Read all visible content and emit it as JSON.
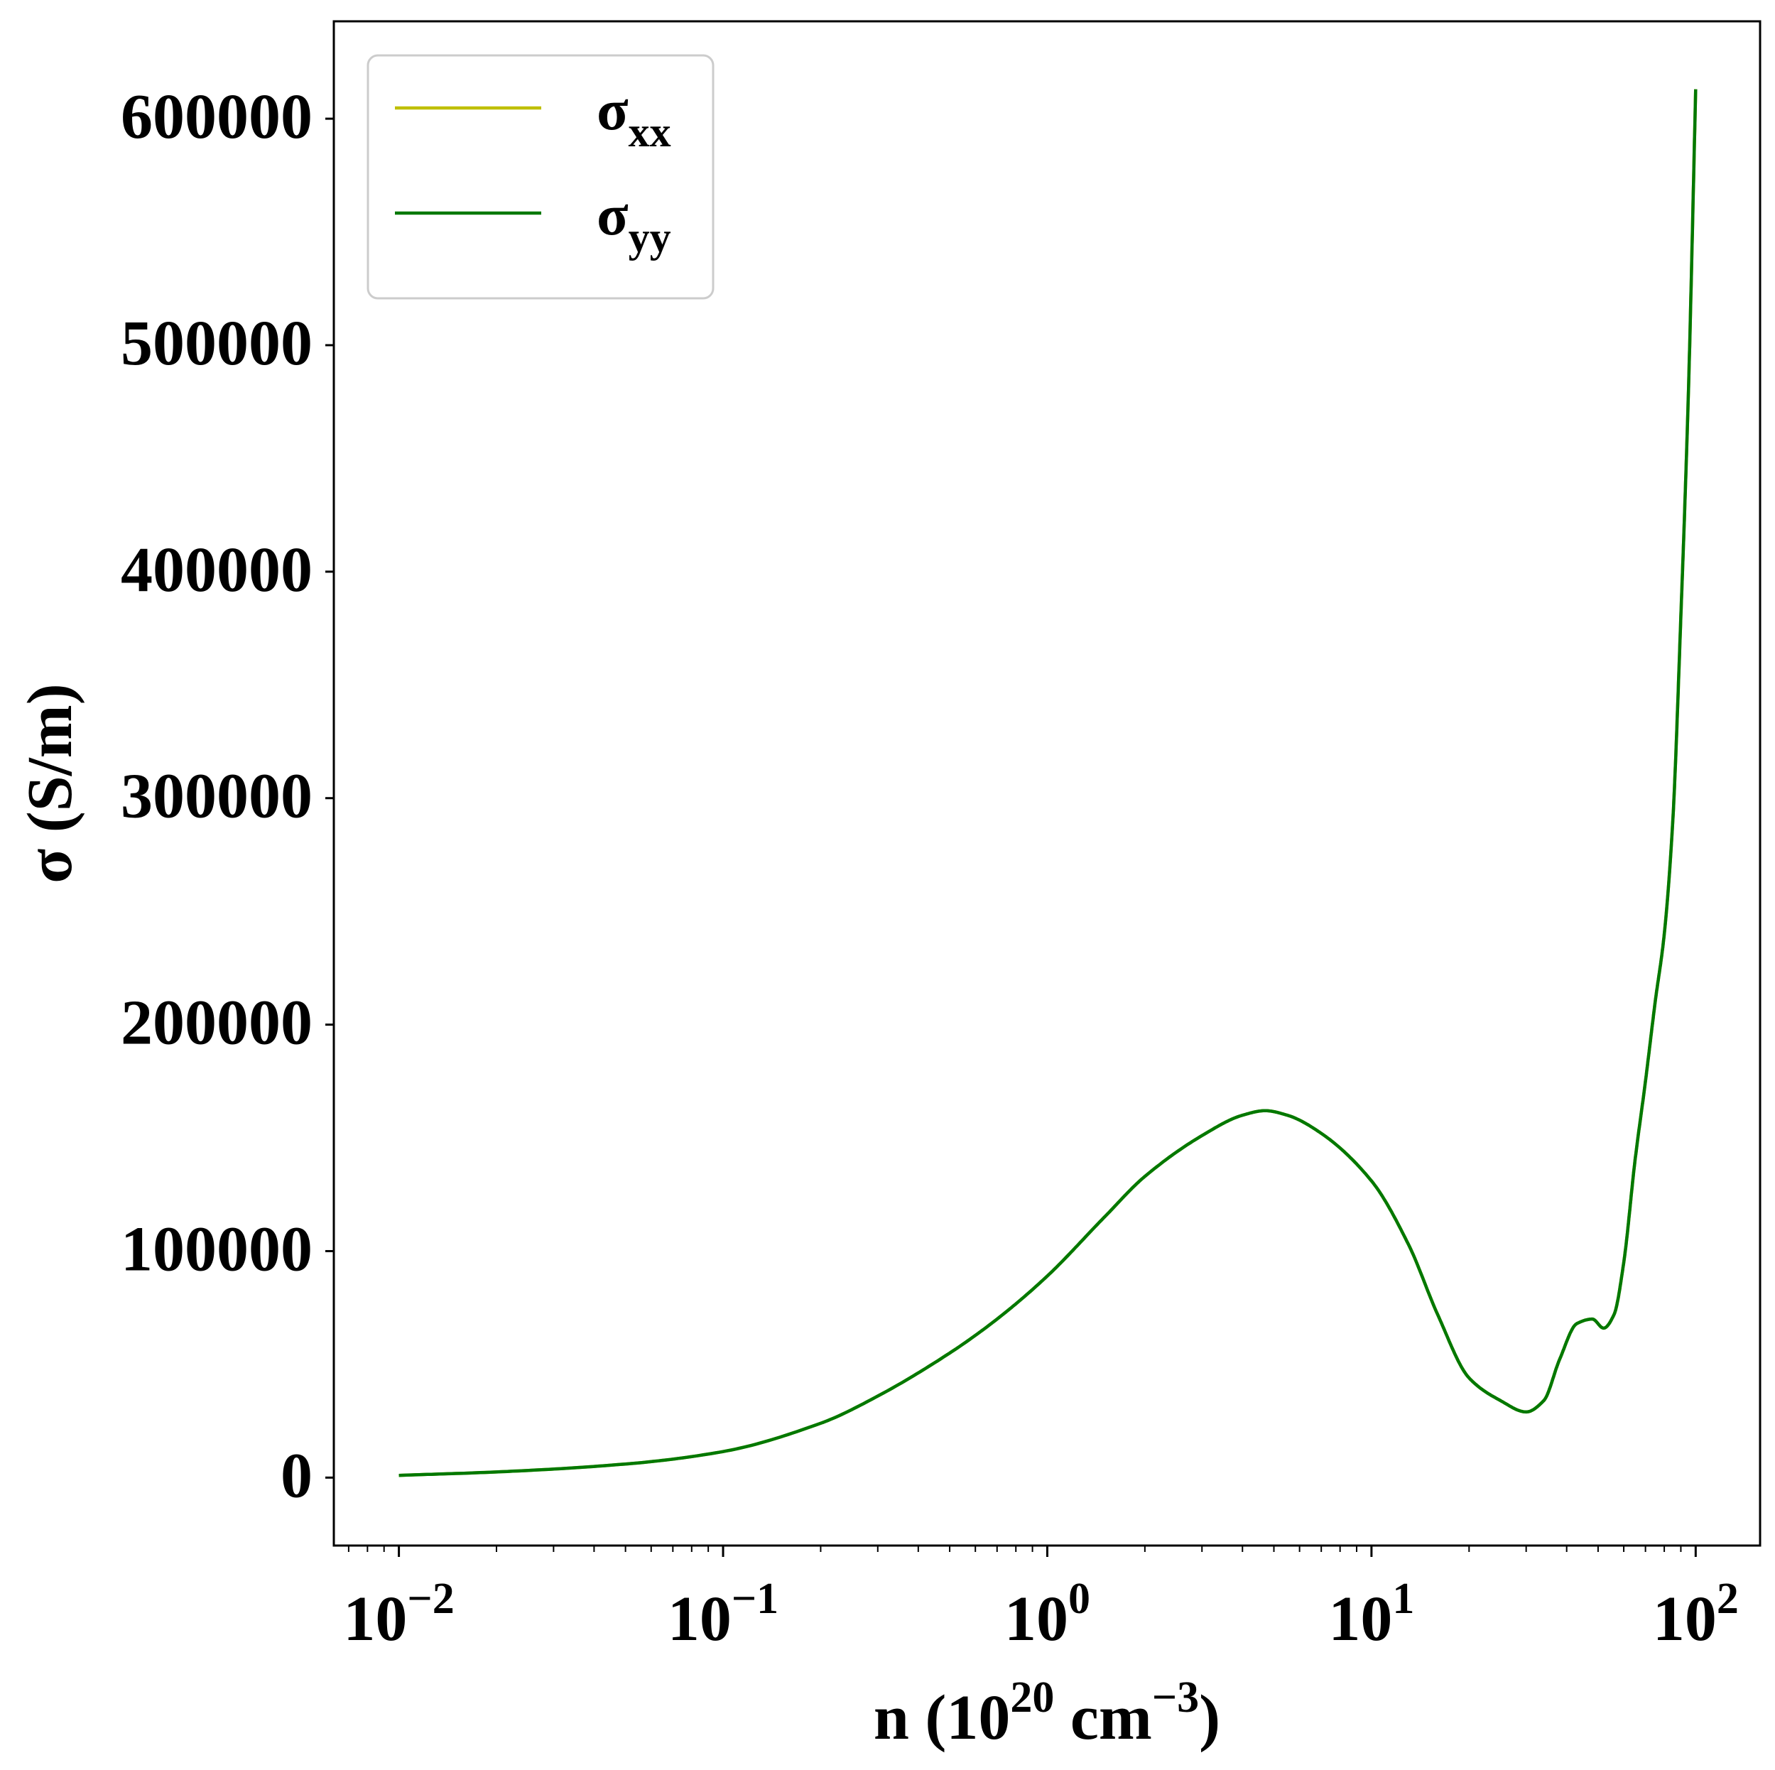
{
  "chart_data": {
    "type": "line",
    "title": "",
    "xlabel": "n (10^20 cm^-3)",
    "xlabel_parts": {
      "base": "n (10",
      "exp1": "20",
      "mid": " cm",
      "exp2": "−3",
      "end": ")"
    },
    "ylabel": "σ (S/m)",
    "x_scale": "log",
    "xlim": [
      0.0063,
      158
    ],
    "ylim": [
      -30000,
      643000
    ],
    "x_ticks": [
      {
        "value": 0.01,
        "base": "10",
        "exp": "−2"
      },
      {
        "value": 0.1,
        "base": "10",
        "exp": "−1"
      },
      {
        "value": 1,
        "base": "10",
        "exp": "0"
      },
      {
        "value": 10,
        "base": "10",
        "exp": "1"
      },
      {
        "value": 100,
        "base": "10",
        "exp": "2"
      }
    ],
    "y_ticks": [
      {
        "value": 0,
        "label": "0"
      },
      {
        "value": 100000,
        "label": "100000"
      },
      {
        "value": 200000,
        "label": "200000"
      },
      {
        "value": 300000,
        "label": "300000"
      },
      {
        "value": 400000,
        "label": "400000"
      },
      {
        "value": 500000,
        "label": "500000"
      },
      {
        "value": 600000,
        "label": "600000"
      }
    ],
    "grid": false,
    "legend_position": "top-left",
    "series": [
      {
        "name": "σxx",
        "name_base": "σ",
        "name_sub": "xx",
        "color": "#bfbf00",
        "x": [
          0.01,
          0.02,
          0.05,
          0.1,
          0.2,
          0.3,
          0.5,
          0.7,
          1.0,
          1.5,
          2.0,
          3.0,
          4.0,
          4.7,
          5.5,
          7.0,
          10,
          13,
          16,
          20,
          25,
          30,
          34,
          38,
          43,
          48,
          52,
          56,
          60,
          65,
          70,
          75,
          80,
          85,
          90,
          95,
          100
        ],
        "y": [
          1000,
          2500,
          6000,
          11500,
          24000,
          36000,
          55000,
          70000,
          89000,
          115000,
          133000,
          151000,
          160000,
          162000,
          160000,
          152000,
          131000,
          103000,
          72000,
          44000,
          34000,
          29000,
          34000,
          52000,
          68000,
          70000,
          66000,
          72000,
          95000,
          140000,
          175000,
          210000,
          240000,
          290000,
          380000,
          480000,
          613000
        ]
      },
      {
        "name": "σyy",
        "name_base": "σ",
        "name_sub": "yy",
        "color": "#007800",
        "x": [
          0.01,
          0.02,
          0.05,
          0.1,
          0.2,
          0.3,
          0.5,
          0.7,
          1.0,
          1.5,
          2.0,
          3.0,
          4.0,
          4.7,
          5.5,
          7.0,
          10,
          13,
          16,
          20,
          25,
          30,
          34,
          38,
          43,
          48,
          52,
          56,
          60,
          65,
          70,
          75,
          80,
          85,
          90,
          95,
          100
        ],
        "y": [
          1000,
          2500,
          6000,
          11500,
          24000,
          36000,
          55000,
          70000,
          89000,
          115000,
          133000,
          151000,
          160000,
          162000,
          160000,
          152000,
          131000,
          103000,
          72000,
          44000,
          34000,
          29000,
          34000,
          52000,
          68000,
          70000,
          66000,
          72000,
          95000,
          140000,
          175000,
          210000,
          240000,
          290000,
          380000,
          480000,
          613000
        ]
      }
    ]
  }
}
